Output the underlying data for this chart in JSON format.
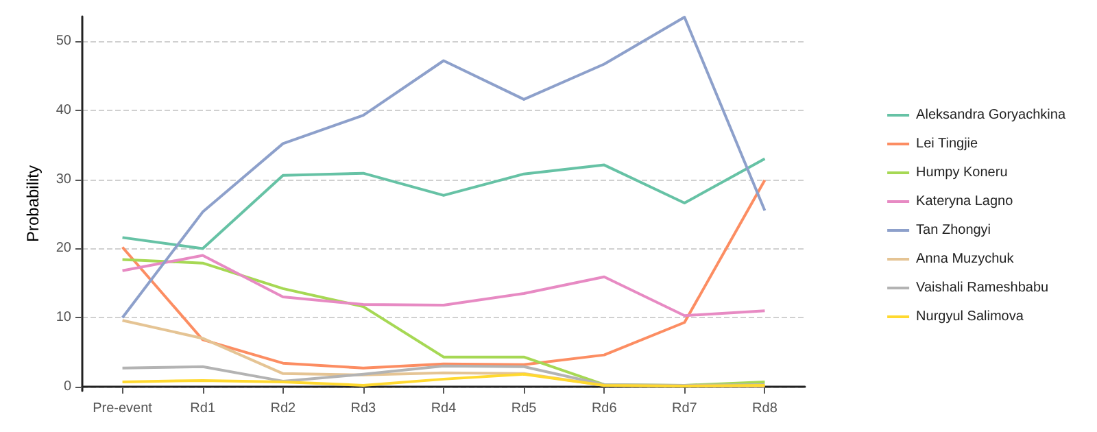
{
  "chart_data": {
    "type": "line",
    "ylabel": "Probability",
    "categories": [
      "Pre-event",
      "Rd1",
      "Rd2",
      "Rd3",
      "Rd4",
      "Rd5",
      "Rd6",
      "Rd7",
      "Rd8"
    ],
    "series": [
      {
        "name": "Aleksandra Goryachkina",
        "color": "#66c2a5",
        "values": [
          21.6,
          20,
          30.6,
          30.9,
          27.7,
          30.8,
          32.1,
          26.6,
          33.0
        ]
      },
      {
        "name": "Lei Tingjie",
        "color": "#fc8d62",
        "values": [
          20.2,
          6.8,
          3.4,
          2.7,
          3.3,
          3.2,
          4.6,
          9.3,
          29.9
        ]
      },
      {
        "name": "Humpy Koneru",
        "color": "#a6d854",
        "values": [
          18.4,
          17.9,
          14.2,
          11.6,
          4.3,
          4.3,
          0.3,
          0.2,
          0.7
        ]
      },
      {
        "name": "Kateryna Lagno",
        "color": "#e78ac3",
        "values": [
          16.8,
          19.0,
          13.0,
          11.9,
          11.8,
          13.5,
          15.9,
          10.3,
          11.0
        ]
      },
      {
        "name": "Tan Zhongyi",
        "color": "#8da0cb",
        "values": [
          10.0,
          25.3,
          35.2,
          39.3,
          47.2,
          41.6,
          46.7,
          53.5,
          25.5
        ]
      },
      {
        "name": "Anna Muzychuk",
        "color": "#e5c494",
        "values": [
          9.6,
          7.0,
          1.9,
          1.7,
          2.0,
          1.9,
          0.2,
          0.1,
          0.1
        ]
      },
      {
        "name": "Vaishali Rameshbabu",
        "color": "#b3b3b3",
        "values": [
          2.7,
          2.9,
          0.8,
          1.8,
          3.0,
          2.9,
          0.3,
          0.2,
          0.3
        ]
      },
      {
        "name": "Nurgyul Salimova",
        "color": "#ffd92f",
        "values": [
          0.7,
          0.9,
          0.7,
          0.2,
          1.1,
          1.8,
          0.2,
          0.1,
          0.2
        ]
      }
    ],
    "ylim": [
      -0.6,
      53.6
    ],
    "yticks": [
      0,
      10,
      20,
      30,
      40,
      50
    ],
    "grid": "y",
    "legend": "right",
    "marker": "none",
    "line_style": "solid"
  }
}
